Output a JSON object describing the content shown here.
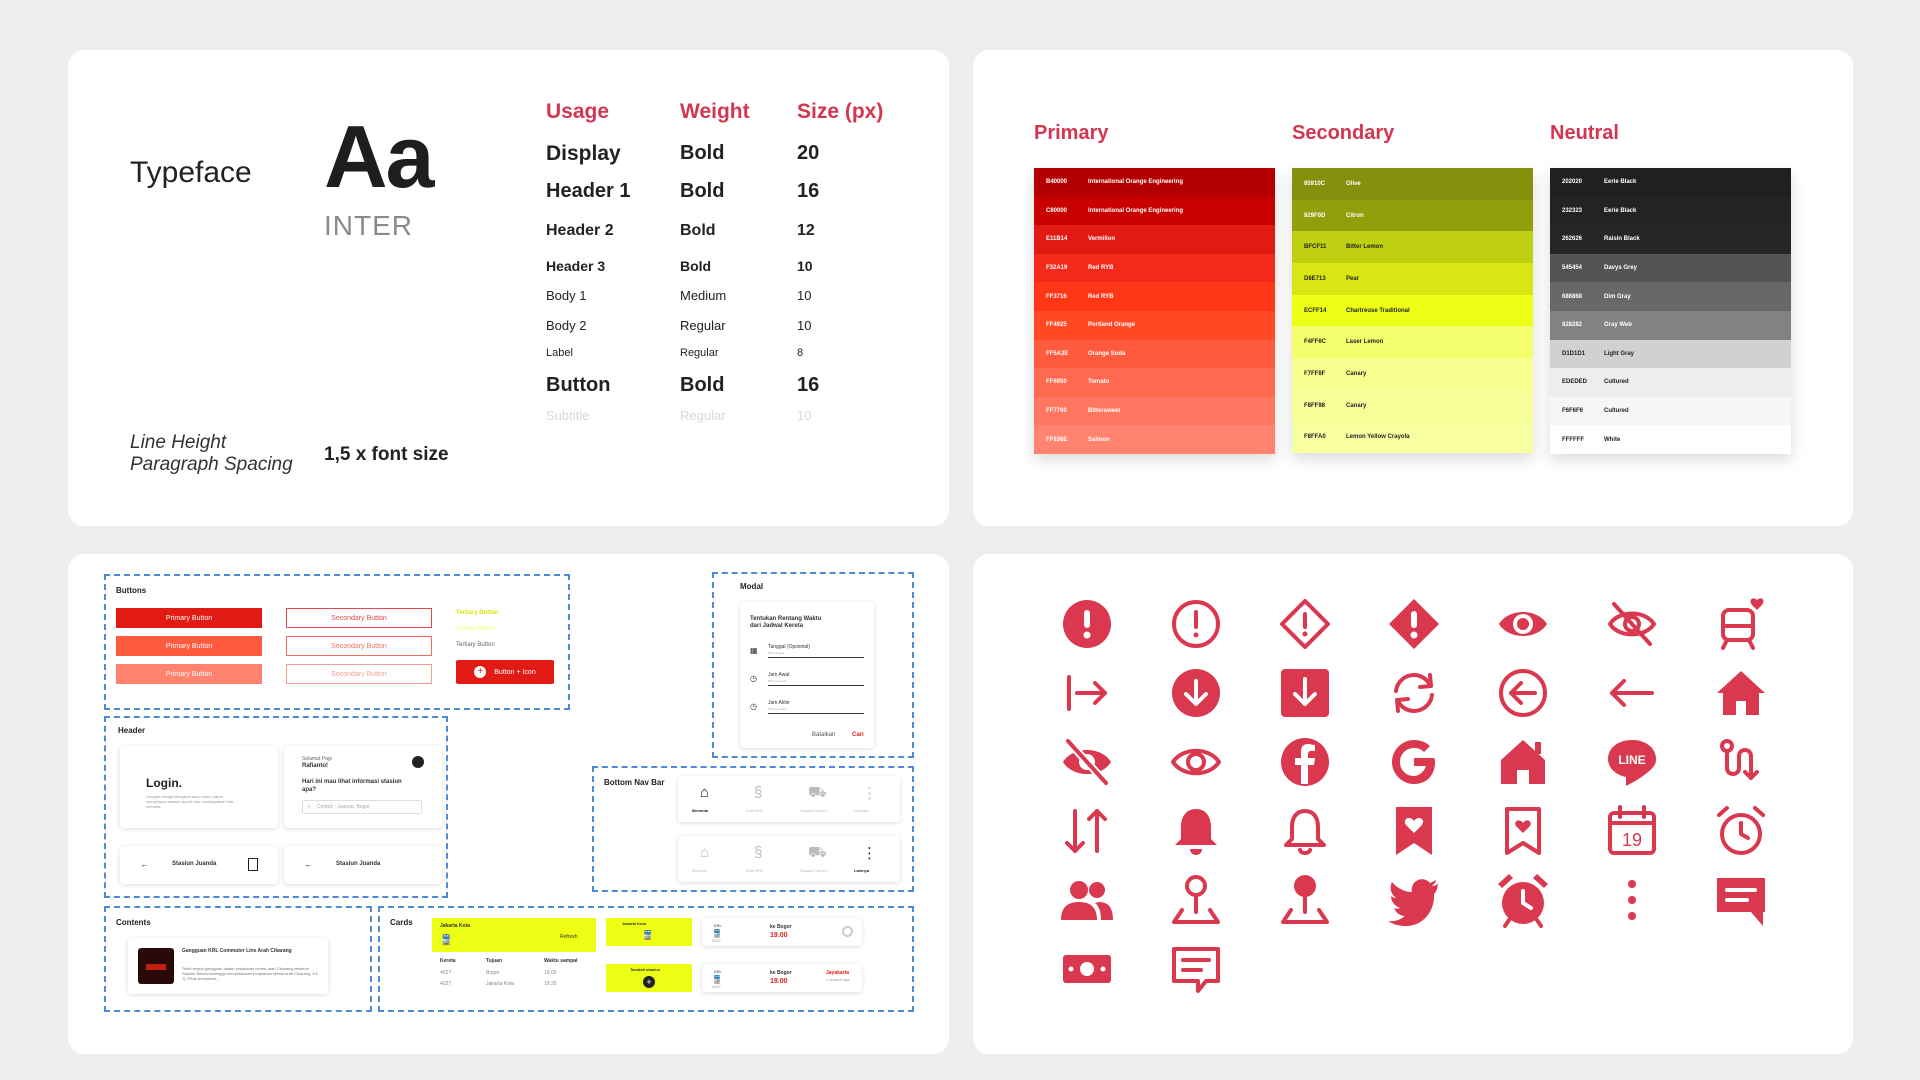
{
  "typography": {
    "typeface_label": "Typeface",
    "sample": "Aa",
    "font_name": "INTER",
    "line_height_label_1": "Line Height",
    "line_height_label_2": "Paragraph Spacing",
    "line_height_value": "1,5 x font size",
    "headers": [
      "Usage",
      "Weight",
      "Size (px)"
    ],
    "rows": [
      {
        "usage": "Display",
        "weight": "Bold",
        "size": "20"
      },
      {
        "usage": "Header 1",
        "weight": "Bold",
        "size": "16"
      },
      {
        "usage": "Header 2",
        "weight": "Bold",
        "size": "12"
      },
      {
        "usage": "Header 3",
        "weight": "Bold",
        "size": "10"
      },
      {
        "usage": "Body 1",
        "weight": "Medium",
        "size": "10"
      },
      {
        "usage": "Body 2",
        "weight": "Regular",
        "size": "10"
      },
      {
        "usage": "Label",
        "weight": "Regular",
        "size": "8"
      },
      {
        "usage": "Button",
        "weight": "Bold",
        "size": "16"
      },
      {
        "usage": "Subtitle",
        "weight": "Regular",
        "size": "10"
      }
    ]
  },
  "colors": {
    "groups": [
      {
        "title": "Primary",
        "swatches": [
          {
            "hex": "B40000",
            "name": "International Orange Engineering",
            "color": "#B40000",
            "text": "#ffffff"
          },
          {
            "hex": "C80000",
            "name": "International Orange Engineering",
            "color": "#C80000",
            "text": "#ffffff"
          },
          {
            "hex": "E11B14",
            "name": "Vermilion",
            "color": "#E11B14",
            "text": "#ffffff"
          },
          {
            "hex": "F32A19",
            "name": "Red RYB",
            "color": "#F32A19",
            "text": "#ffffff"
          },
          {
            "hex": "FF3716",
            "name": "Red RYB",
            "color": "#FF3716",
            "text": "#ffffff"
          },
          {
            "hex": "FF4925",
            "name": "Portland Orange",
            "color": "#FF4925",
            "text": "#ffffff"
          },
          {
            "hex": "FF5A3E",
            "name": "Orange Soda",
            "color": "#FF5A3E",
            "text": "#ffffff"
          },
          {
            "hex": "FF6950",
            "name": "Tomato",
            "color": "#FF6950",
            "text": "#ffffff"
          },
          {
            "hex": "FF7760",
            "name": "Bittersweet",
            "color": "#FF7760",
            "text": "#ffffff"
          },
          {
            "hex": "FF836E",
            "name": "Salmon",
            "color": "#FF836E",
            "text": "#ffffff"
          }
        ]
      },
      {
        "title": "Secondary",
        "swatches": [
          {
            "hex": "85910C",
            "name": "Olive",
            "color": "#85910C",
            "text": "#ffffff"
          },
          {
            "hex": "929F0D",
            "name": "Citron",
            "color": "#929F0D",
            "text": "#ffffff"
          },
          {
            "hex": "BFCF11",
            "name": "Bitter Lemon",
            "color": "#BFCF11",
            "text": "#222222"
          },
          {
            "hex": "D8E713",
            "name": "Pear",
            "color": "#D8E713",
            "text": "#222222"
          },
          {
            "hex": "ECFF14",
            "name": "Chartreuse Traditional",
            "color": "#ECFF14",
            "text": "#222222"
          },
          {
            "hex": "F4FF6C",
            "name": "Laser Lemon",
            "color": "#F4FF6C",
            "text": "#222222"
          },
          {
            "hex": "F7FF8F",
            "name": "Canary",
            "color": "#F7FF8F",
            "text": "#222222"
          },
          {
            "hex": "F8FF98",
            "name": "Canary",
            "color": "#F8FF98",
            "text": "#222222"
          },
          {
            "hex": "F8FFA0",
            "name": "Lemon Yellow Crayola",
            "color": "#F8FFA0",
            "text": "#222222"
          }
        ]
      },
      {
        "title": "Neutral",
        "swatches": [
          {
            "hex": "202020",
            "name": "Eerie Black",
            "color": "#202020",
            "text": "#ffffff"
          },
          {
            "hex": "232323",
            "name": "Eerie Black",
            "color": "#232323",
            "text": "#ffffff"
          },
          {
            "hex": "262626",
            "name": "Raisin Black",
            "color": "#262626",
            "text": "#ffffff"
          },
          {
            "hex": "545454",
            "name": "Davys Grey",
            "color": "#545454",
            "text": "#ffffff"
          },
          {
            "hex": "686868",
            "name": "Dim Gray",
            "color": "#686868",
            "text": "#ffffff"
          },
          {
            "hex": "828282",
            "name": "Gray Web",
            "color": "#828282",
            "text": "#ffffff"
          },
          {
            "hex": "D1D1D1",
            "name": "Light Gray",
            "color": "#D1D1D1",
            "text": "#222222"
          },
          {
            "hex": "EDEDED",
            "name": "Cultured",
            "color": "#EDEDED",
            "text": "#222222"
          },
          {
            "hex": "F6F6F6",
            "name": "Cultured",
            "color": "#F6F6F6",
            "text": "#222222"
          },
          {
            "hex": "FFFFFF",
            "name": "White",
            "color": "#FFFFFF",
            "text": "#222222"
          }
        ]
      }
    ]
  },
  "components": {
    "buttons": {
      "title": "Buttons",
      "primary": [
        "Primary Button",
        "Primary Button",
        "Primary Button"
      ],
      "primary_colors": [
        "#E11B14",
        "#FF5A3E",
        "#FF836E"
      ],
      "secondary": [
        "Secondary Button",
        "Secondary Button",
        "Secondary Button"
      ],
      "tertiary": [
        "Tertiary Button",
        "Tertiary Button",
        "Tertiary Button"
      ],
      "icon_button": "Button + Icon"
    },
    "modal": {
      "title": "Modal",
      "heading": "Tentukan Rentang Waktu dari Jadwal Kereta",
      "fields": [
        {
          "label": "Tanggal (Opsional)",
          "hint": "Pilih tanggal"
        },
        {
          "label": "Jam Awal",
          "hint": "Pilih jam awal"
        },
        {
          "label": "Jam Akhir",
          "hint": "Pilih jam akhir"
        }
      ],
      "cancel": "Batalkan",
      "submit": "Cari"
    },
    "header": {
      "title": "Header",
      "login": "Login.",
      "login_desc": "Dengan menghubungkan akun kamu dapat menyimpan stasiun favorit dan mendapatkan info menarik.",
      "greeting": "Selamat Pagi",
      "name": "Rafianto!",
      "question": "Hari ini mau lihat informasi stasiun apa?",
      "search_placeholder": "Contoh : Juanda, Bogor",
      "station": "Stasiun Juanda",
      "station2": "Stasiun Juanda"
    },
    "bottom_nav": {
      "title": "Bottom Nav Bar",
      "items": [
        "Beranda",
        "Rute KRL",
        "Stasiun Favorit",
        "Lainnya"
      ]
    },
    "contents": {
      "title": "Contents",
      "headline": "Gangguan KRL Commuter Line Arah Cikarang",
      "desc": "Telah terjadi gangguan dalam perjalanan kereta arah Cikarang sebelum Stasiun Bekasi sehingga menyebabkan perjalanan kereta arah Cikarang, KA Tj. Priuk terhambat..."
    },
    "cards": {
      "title": "Cards",
      "route_title": "Jakarta Kota",
      "refresh": "Refresh",
      "table_headers": [
        "Kereta",
        "Tujuan",
        "Waktu sampai"
      ],
      "table_rows": [
        [
          "4027",
          "Bogor",
          "19.00"
        ],
        [
          "4027",
          "Jakarta Kota",
          "19.25"
        ]
      ],
      "small_title": "Jakarta Kota",
      "add_station": "Tambah stasiun",
      "train_tag": "KRL",
      "train_num": "4027",
      "dest_1": "ke Bogor",
      "time_1": "19.00",
      "dest_2": "ke Bogor",
      "time_2": "19.00",
      "delay_label": "Jayakarta",
      "delay_sub": "1 stasiun lagi"
    }
  },
  "icons": {
    "color": "#D9384F",
    "names": [
      "alert-circle-filled",
      "alert-circle-outline",
      "alert-diamond-outline",
      "alert-diamond-filled",
      "eye-filled",
      "eye-off-outline",
      "train-favorite",
      "arrow-right-to-line",
      "arrow-down-circle-filled",
      "arrow-down-square-filled",
      "refresh",
      "arrow-left-circle",
      "arrow-left",
      "home-filled",
      "eye-off-filled",
      "eye-outline",
      "facebook",
      "google",
      "home-alt-filled",
      "line-logo",
      "route",
      "sort-arrows",
      "bell-filled",
      "bell-outline",
      "bookmark-heart-filled",
      "bookmark-heart-outline",
      "calendar-19",
      "alarm-outline",
      "users",
      "pin-outline",
      "pin-filled",
      "twitter",
      "alarm-filled",
      "more-vertical",
      "message-filled",
      "money",
      "message-outline"
    ]
  }
}
